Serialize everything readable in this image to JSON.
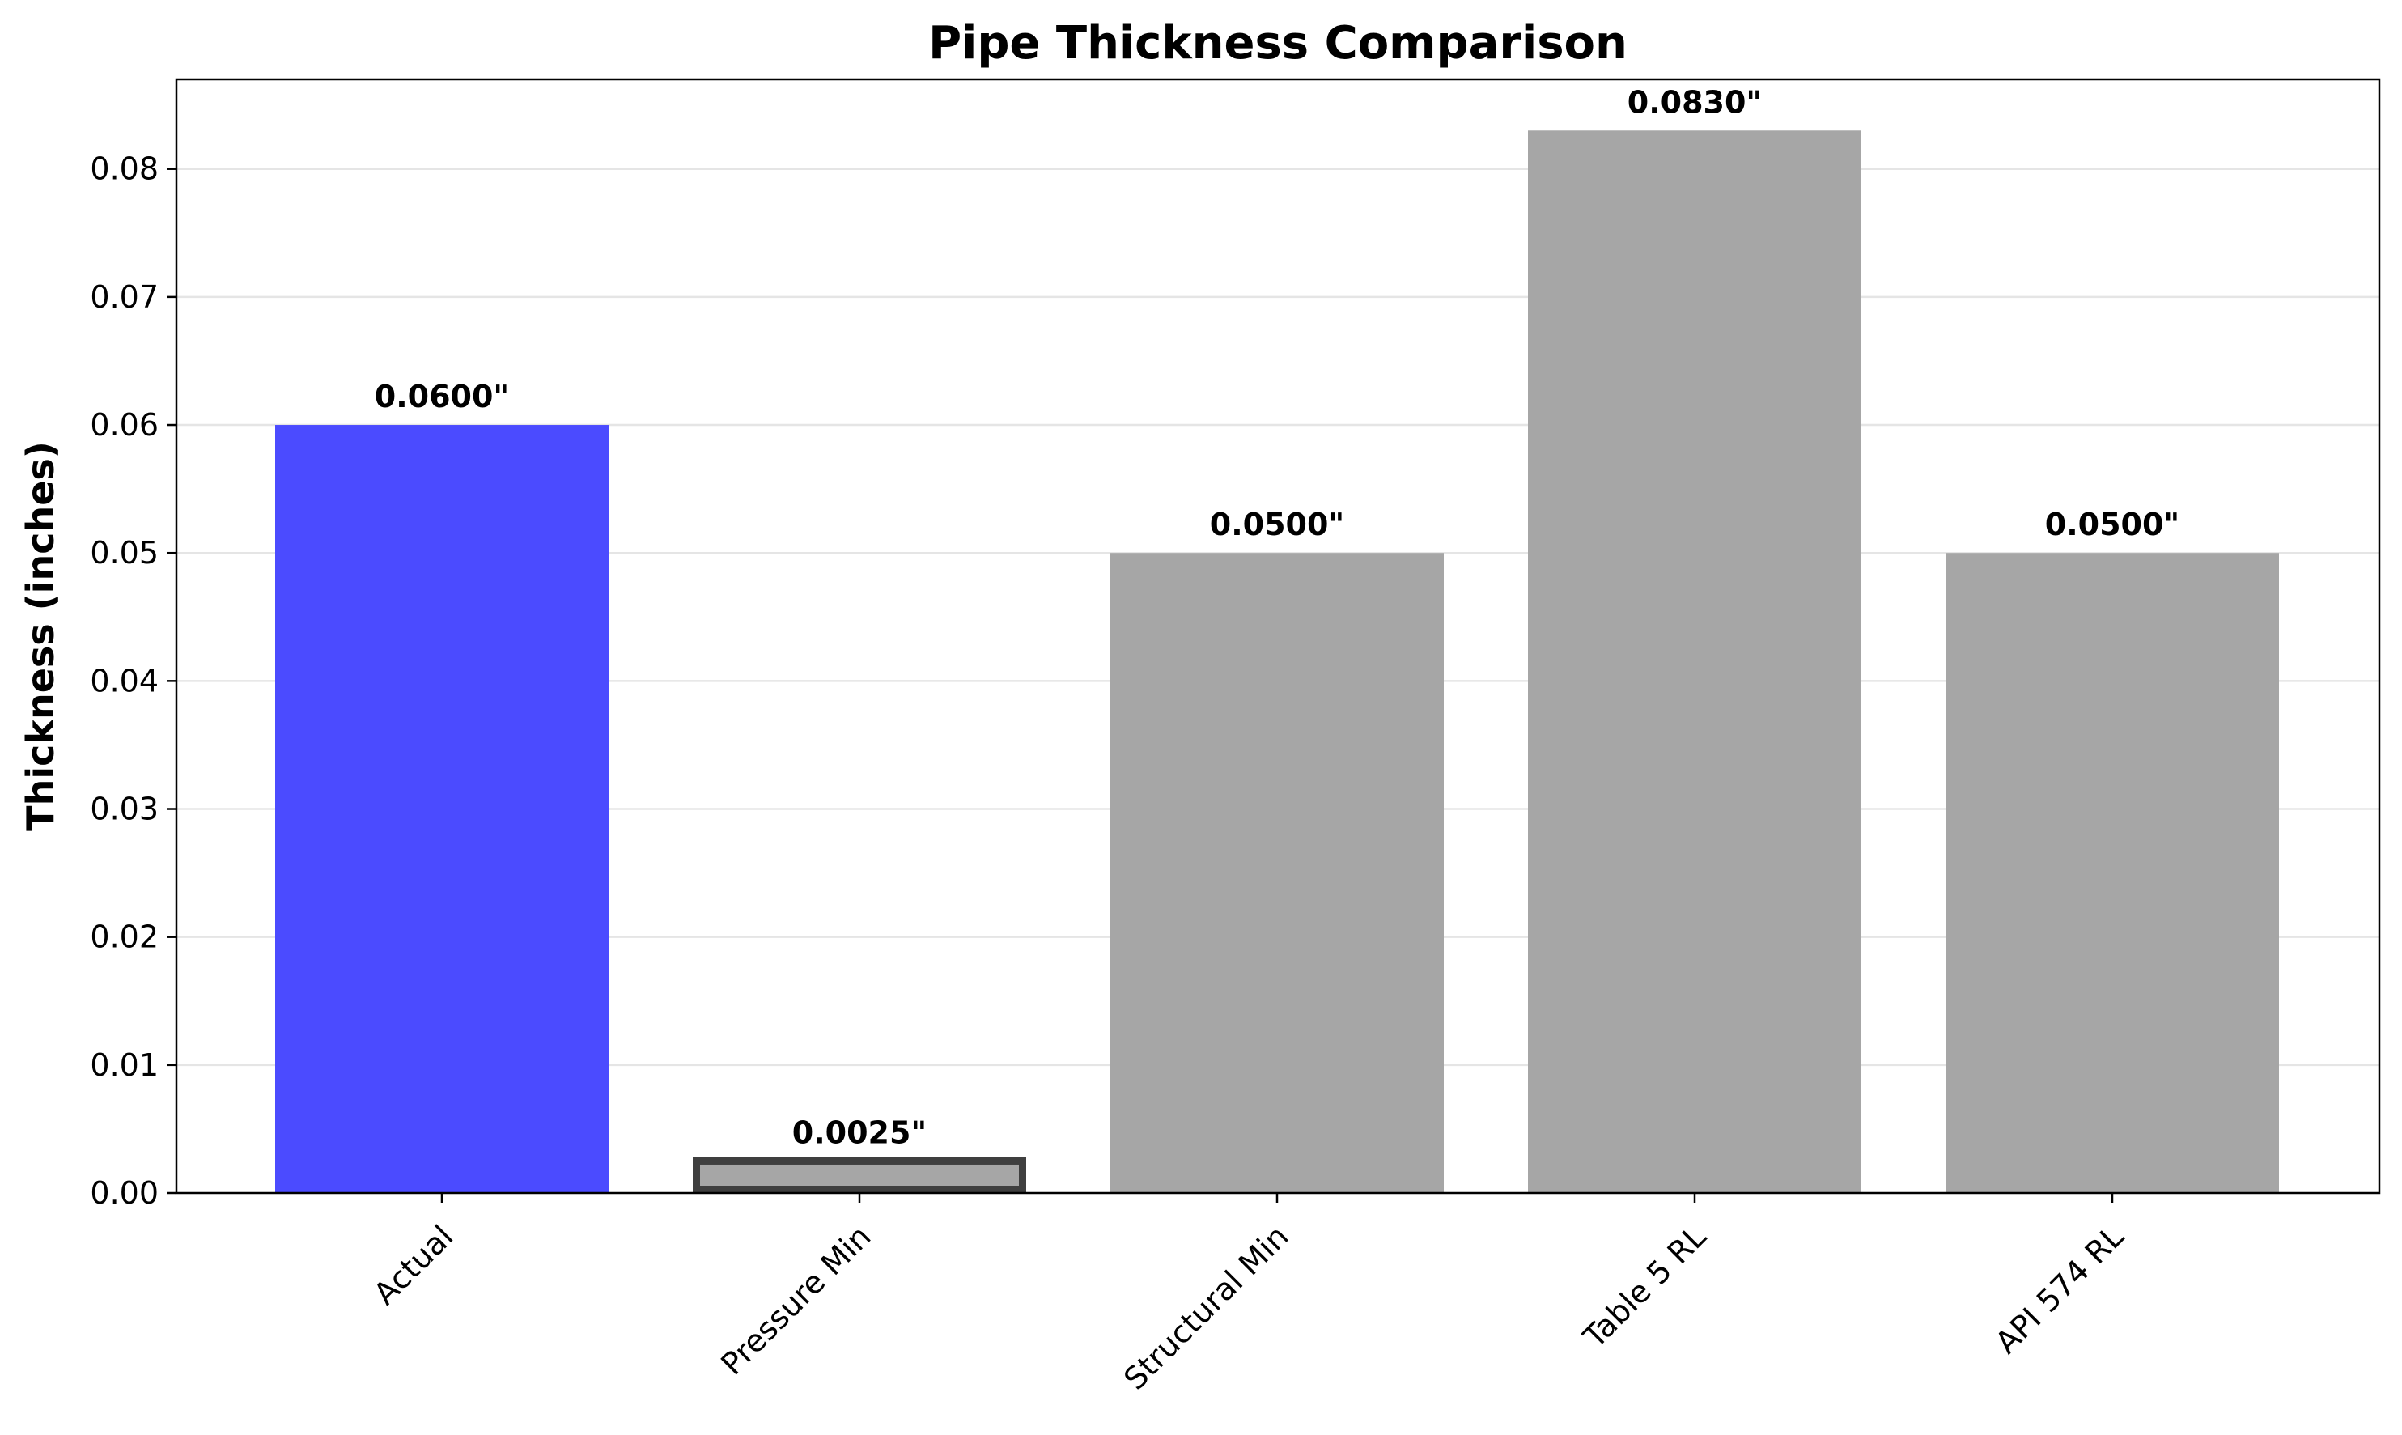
{
  "chart_data": {
    "type": "bar",
    "title": "Pipe Thickness Comparison",
    "xlabel": "",
    "ylabel": "Thickness (inches)",
    "ylim": [
      0,
      0.087
    ],
    "y_ticks": [
      "0.00",
      "0.01",
      "0.02",
      "0.03",
      "0.04",
      "0.05",
      "0.06",
      "0.07",
      "0.08"
    ],
    "grid": "y-axis only",
    "categories": [
      "Actual",
      "Pressure Min",
      "Structural Min",
      "Table 5 RL",
      "API 574 RL"
    ],
    "values": [
      0.06,
      0.0025,
      0.05,
      0.083,
      0.05
    ],
    "data_labels": [
      "0.0600\"",
      "0.0025\"",
      "0.0500\"",
      "0.0830\"",
      "0.0500\""
    ],
    "bar_colors": [
      "#4b4bff",
      "#a6a6a6",
      "#a6a6a6",
      "#a6a6a6",
      "#a6a6a6"
    ],
    "highlighted_bar": "Pressure Min",
    "highlight_edge_color": "#3f3f3f"
  }
}
